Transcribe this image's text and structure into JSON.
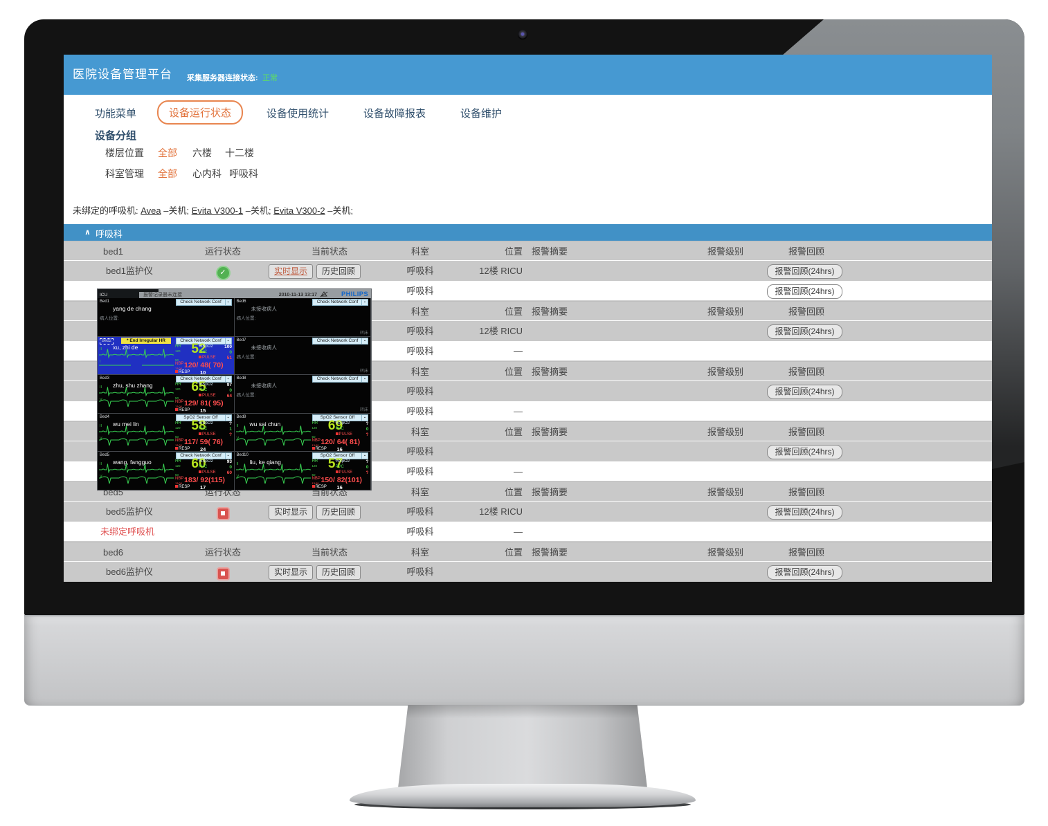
{
  "header": {
    "title": "医院设备管理平台",
    "server_status_label": "采集服务器连接状态:",
    "server_status_value": "正常"
  },
  "nav": {
    "items": [
      {
        "label": "功能菜单",
        "active": false
      },
      {
        "label": "设备运行状态",
        "active": true
      },
      {
        "label": "设备使用统计",
        "active": false
      },
      {
        "label": "设备故障报表",
        "active": false
      },
      {
        "label": "设备维护",
        "active": false
      }
    ]
  },
  "filters": {
    "group_title": "设备分组",
    "rows": [
      {
        "label": "楼层位置",
        "options": [
          {
            "label": "全部",
            "selected": true
          },
          {
            "label": "六楼",
            "selected": false
          },
          {
            "label": "十二楼",
            "selected": false
          }
        ]
      },
      {
        "label": "科室管理",
        "options": [
          {
            "label": "全部",
            "selected": true
          },
          {
            "label": "心内科",
            "selected": false
          },
          {
            "label": "呼吸科",
            "selected": false
          }
        ]
      }
    ]
  },
  "unbound": {
    "prefix": "未绑定的呼吸机: ",
    "items": [
      {
        "name": "Avea",
        "state": "–关机; "
      },
      {
        "name": "Evita V300-1",
        "state": "–关机; "
      },
      {
        "name": "Evita V300-2",
        "state": "–关机;"
      }
    ]
  },
  "section": {
    "collapse_icon": "∧",
    "title": "呼吸科"
  },
  "table": {
    "header_labels": {
      "run": "运行状态",
      "current": "当前状态",
      "dept": "科室",
      "loc": "位置",
      "alarm_summary": "报警摘要",
      "alarm_level": "报警级别",
      "alarm_review": "报警回顾"
    },
    "buttons": {
      "realtime": "实时显示",
      "history": "历史回顾",
      "review": "报警回顾(24hrs)"
    },
    "groups": [
      {
        "bed": "bed1",
        "monitor": {
          "name": "bed1监护仪",
          "status": "ok",
          "buttons": true,
          "realtime_active": true,
          "dept": "呼吸科",
          "loc": "12楼 RICU",
          "review": true
        },
        "vent": {
          "name": "",
          "red": false,
          "dept": "呼吸科",
          "loc": "",
          "review": true
        }
      },
      {
        "bed": "",
        "monitor": {
          "name": "",
          "status": "none",
          "buttons": false,
          "realtime_active": false,
          "dept": "呼吸科",
          "loc": "12楼 RICU",
          "review": true
        },
        "vent": {
          "name": "",
          "red": false,
          "dept": "呼吸科",
          "loc": "—",
          "review": false
        }
      },
      {
        "bed": "",
        "monitor": {
          "name": "",
          "status": "none",
          "buttons": false,
          "realtime_active": false,
          "dept": "呼吸科",
          "loc": "",
          "review": true
        },
        "vent": {
          "name": "",
          "red": false,
          "dept": "呼吸科",
          "loc": "—",
          "review": false
        }
      },
      {
        "bed": "",
        "monitor": {
          "name": "",
          "status": "none",
          "buttons": false,
          "realtime_active": false,
          "dept": "呼吸科",
          "loc": "",
          "review": true
        },
        "vent": {
          "name": "",
          "red": false,
          "dept": "呼吸科",
          "loc": "—",
          "review": false
        }
      },
      {
        "bed": "bed5",
        "monitor": {
          "name": "bed5监护仪",
          "status": "stop",
          "buttons": true,
          "realtime_active": false,
          "dept": "呼吸科",
          "loc": "12楼 RICU",
          "review": true
        },
        "vent": {
          "name": "未绑定呼吸机",
          "red": true,
          "dept": "呼吸科",
          "loc": "—",
          "review": false
        }
      },
      {
        "bed": "bed6",
        "monitor": {
          "name": "bed6监护仪",
          "status": "stop",
          "buttons": true,
          "realtime_active": false,
          "dept": "呼吸科",
          "loc": "",
          "review": true
        },
        "vent": null
      }
    ]
  },
  "popup": {
    "titlebar": {
      "unit": "ICU",
      "alarm_notice": "报警记录器未连接",
      "datetime": "2010-11-13 13:17",
      "brand": "PHILIPS"
    },
    "labels": {
      "hr": "HR",
      "hr_hi": "120",
      "hr_lo": "50",
      "spo2": "%SpO2",
      "pvc": "PVC",
      "pulse": "PULSE",
      "nbp": "NBP",
      "nbp_sub": "13:00",
      "resp": "RESP"
    },
    "tiles": [
      {
        "id": "Bed1",
        "type": "named",
        "name": "yang de chang",
        "loc_label": "病人位置:",
        "dropdown": "Check Network Conf"
      },
      {
        "id": "Bed6",
        "type": "empty",
        "msg": "未接收病人",
        "loc_label": "病人位置:",
        "dropdown": "Check Network Conf",
        "corner": "转床"
      },
      {
        "id": "Bed2",
        "type": "active",
        "selected": true,
        "alarm": "* End Irregular HR",
        "name": "xu, zhi de",
        "dropdown": "Check Network Conf",
        "leads": [
          "II",
          "I"
        ],
        "hr": "52",
        "spo2": "100",
        "pvc": "0",
        "pulse": "51",
        "nbp": "120/ 48( 70)",
        "resp": "10"
      },
      {
        "id": "Bed7",
        "type": "empty",
        "msg": "未接收病人",
        "loc_label": "病人位置:",
        "dropdown": "Check Network Conf",
        "corner": "转床"
      },
      {
        "id": "Bed3",
        "type": "active",
        "selected": false,
        "alarm": "",
        "name": "zhu, shu zhang",
        "dropdown": "Check Network Conf",
        "leads": [
          "II",
          "V"
        ],
        "hr": "65",
        "spo2": "97",
        "pvc": "0",
        "pulse": "64",
        "nbp": "129/ 81( 95)",
        "resp": "15"
      },
      {
        "id": "Bed8",
        "type": "empty",
        "msg": "未接收病人",
        "loc_label": "病人位置:",
        "dropdown": "Check Network Conf",
        "corner": "转床"
      },
      {
        "id": "Bed4",
        "type": "active",
        "selected": false,
        "alarm": "",
        "name": "wu mei lin",
        "dropdown": "SpO2 Sensor Off",
        "leads": [
          "II",
          "V"
        ],
        "hr": "58",
        "spo2": "?",
        "pvc": "1",
        "pulse": "?",
        "nbp": "117/ 59( 76)",
        "resp": "24"
      },
      {
        "id": "Bed9",
        "type": "active",
        "selected": false,
        "alarm": "",
        "name": "wu sai chun",
        "dropdown": "SpO2 Sensor Off",
        "leads": [
          "II",
          "V"
        ],
        "hr": "69",
        "spo2": "?",
        "pvc": "0",
        "pulse": "?",
        "nbp": "120/ 64( 81)",
        "resp": "16"
      },
      {
        "id": "Bed5",
        "type": "active",
        "selected": false,
        "alarm": "",
        "name": "wang, fangguo",
        "dropdown": "Check Network Conf",
        "leads": [
          "II",
          "V"
        ],
        "hr": "60",
        "spo2": "93",
        "pvc": "0",
        "pulse": "60",
        "nbp": "183/ 92(115)",
        "resp": "17"
      },
      {
        "id": "Bed10",
        "type": "active",
        "selected": false,
        "alarm": "",
        "name": "liu, ke qiang",
        "dropdown": "SpO2 Sensor Off",
        "leads": [
          "II",
          "V"
        ],
        "hr": "57",
        "spo2": "?",
        "pvc": "0",
        "pulse": "?",
        "nbp": "150/ 82(101)",
        "resp": "16"
      }
    ]
  },
  "icons": {
    "check": "✓",
    "caret": "∧",
    "dd_arrow": "▪"
  },
  "colors": {
    "header_blue": "#4699d2",
    "section_blue": "#4191c6",
    "accent_orange": "#e2733c",
    "status_green": "#5fe05f",
    "row_gray": "#c9c9c9",
    "alert_red": "#e05252"
  }
}
